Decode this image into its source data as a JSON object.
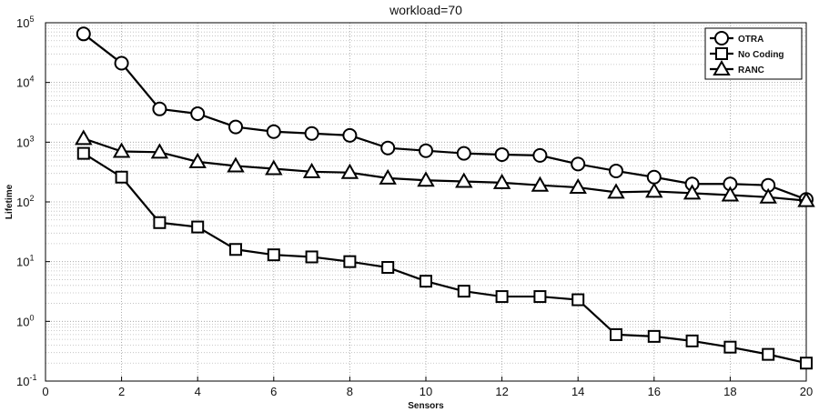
{
  "chart_data": {
    "type": "line",
    "title": "workload=70",
    "xlabel": "Sensors",
    "ylabel": "Lifetime",
    "xlim": [
      0,
      20
    ],
    "ylim": [
      0.1,
      100000
    ],
    "yscale": "log",
    "x_ticks": [
      0,
      2,
      4,
      6,
      8,
      10,
      12,
      14,
      16,
      18,
      20
    ],
    "y_ticks": [
      {
        "base": "10",
        "exp": "-1"
      },
      {
        "base": "10",
        "exp": "0"
      },
      {
        "base": "10",
        "exp": "1"
      },
      {
        "base": "10",
        "exp": "2"
      },
      {
        "base": "10",
        "exp": "3"
      },
      {
        "base": "10",
        "exp": "4"
      },
      {
        "base": "10",
        "exp": "5"
      }
    ],
    "grid": true,
    "legend_position": "top-right",
    "x": [
      1,
      2,
      3,
      4,
      5,
      6,
      7,
      8,
      9,
      10,
      11,
      12,
      13,
      14,
      15,
      16,
      17,
      18,
      19,
      20
    ],
    "series": [
      {
        "name": "OTRA",
        "marker": "circle",
        "values": [
          65000,
          21000,
          3600,
          3000,
          1800,
          1500,
          1400,
          1300,
          800,
          720,
          650,
          620,
          600,
          430,
          330,
          260,
          200,
          200,
          190,
          110
        ]
      },
      {
        "name": "No Coding",
        "marker": "square",
        "values": [
          650,
          260,
          45,
          38,
          16,
          13,
          12,
          10,
          8,
          4.7,
          3.2,
          2.6,
          2.6,
          2.3,
          0.6,
          0.56,
          0.47,
          0.37,
          0.28,
          0.2
        ]
      },
      {
        "name": "RANC",
        "marker": "triangle",
        "values": [
          1150,
          700,
          680,
          470,
          400,
          360,
          320,
          310,
          250,
          230,
          220,
          210,
          190,
          175,
          145,
          150,
          140,
          130,
          120,
          105
        ]
      }
    ],
    "line_color": "#000000"
  }
}
